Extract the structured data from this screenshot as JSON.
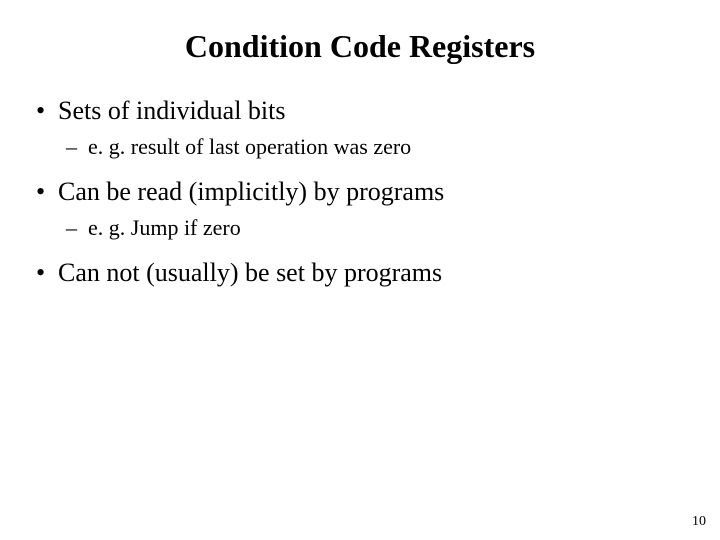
{
  "slide": {
    "title": "Condition Code Registers",
    "bullets": [
      {
        "text": "Sets of individual bits",
        "sub": [
          "e. g. result of last operation was zero"
        ]
      },
      {
        "text": "Can be read (implicitly) by programs",
        "sub": [
          "e. g. Jump if zero"
        ]
      },
      {
        "text": "Can not (usually) be set by programs",
        "sub": []
      }
    ],
    "page_number": "10",
    "styling": {
      "background_color": "#ffffff",
      "text_color": "#000000",
      "title_fontsize": 32,
      "title_fontweight": "bold",
      "bullet_fontsize": 26,
      "sub_fontsize": 22,
      "page_number_fontsize": 14,
      "font_family": "Times New Roman"
    }
  }
}
